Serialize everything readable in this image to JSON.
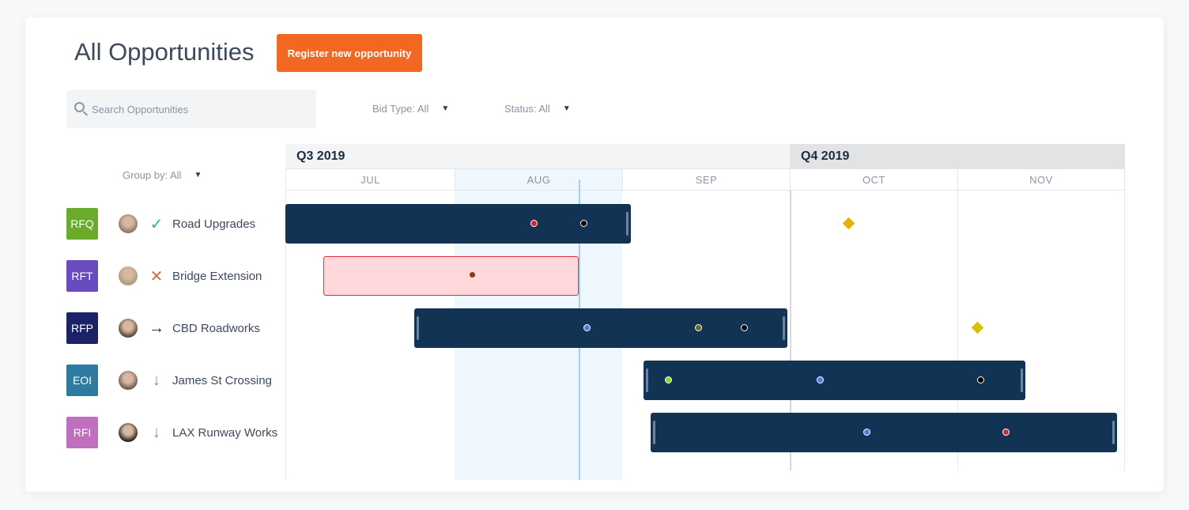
{
  "header": {
    "title": "All Opportunities",
    "register_label": "Register new opportunity"
  },
  "filters": {
    "search_placeholder": "Search Opportunities",
    "bid_type": "Bid Type: All",
    "status": "Status: All",
    "group_by": "Group by: All"
  },
  "timeline": {
    "quarters": [
      "Q3 2019",
      "Q4 2019"
    ],
    "months": [
      "JUL",
      "AUG",
      "SEP",
      "OCT",
      "NOV"
    ]
  },
  "rows": [
    {
      "badge": "RFQ",
      "badge_color": "#6aab2d",
      "status": "check-icon",
      "status_glyph": "✓",
      "status_color": "#2ebd6b",
      "name": "Road Upgrades"
    },
    {
      "badge": "RFT",
      "badge_color": "#6a4bbf",
      "status": "x-icon",
      "status_glyph": "✕",
      "status_color": "#c0714d",
      "name": "Bridge Extension"
    },
    {
      "badge": "RFP",
      "badge_color": "#1b2266",
      "status": "arrow-right-icon",
      "status_glyph": "→",
      "status_color": "#1b2266",
      "name": "CBD Roadworks"
    },
    {
      "badge": "EOI",
      "badge_color": "#2e7aa1",
      "status": "arrow-down-icon",
      "status_glyph": "↓",
      "status_color": "#8a8a8a",
      "name": "James St Crossing"
    },
    {
      "badge": "RFI",
      "badge_color": "#c06fbe",
      "status": "arrow-down-icon",
      "status_glyph": "↓",
      "status_color": "#8a8a8a",
      "name": "LAX Runway Works"
    }
  ],
  "colors": {
    "accent": "#f26722",
    "bar": "#123354",
    "milestone": "#e8b000"
  }
}
